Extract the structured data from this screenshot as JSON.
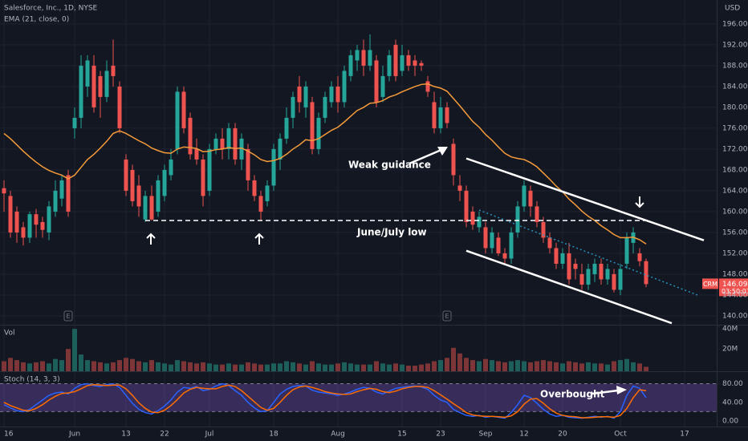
{
  "chart_data": [
    {
      "type": "candlestick",
      "title": "Salesforce, Inc., 1D, NYSE",
      "currency": "USD",
      "ticker": "CRM",
      "last_price": 146.09,
      "countdown": "03:50:07",
      "up_color": "#26a69a",
      "down_color": "#ef5350",
      "xlim": [
        -0.625,
        111
      ],
      "ylim": [
        138.3,
        200.6
      ],
      "yticks": [
        {
          "value": 140,
          "label": "140.00"
        },
        {
          "value": 144,
          "label": "144.00"
        },
        {
          "value": 148,
          "label": "148.00"
        },
        {
          "value": 152,
          "label": "152.00"
        },
        {
          "value": 156,
          "label": "156.00"
        },
        {
          "value": 160,
          "label": "160.00"
        },
        {
          "value": 164,
          "label": "164.00"
        },
        {
          "value": 168,
          "label": "168.00"
        },
        {
          "value": 172,
          "label": "172.00"
        },
        {
          "value": 176,
          "label": "176.00"
        },
        {
          "value": 180,
          "label": "180.00"
        },
        {
          "value": 184,
          "label": "184.00"
        },
        {
          "value": 188,
          "label": "188.00"
        },
        {
          "value": 192,
          "label": "192.00"
        },
        {
          "value": 196,
          "label": "196.00"
        }
      ],
      "grid": true,
      "x": [
        0,
        1,
        2,
        3,
        4,
        5,
        6,
        7,
        8,
        9,
        10,
        11,
        12,
        13,
        14,
        15,
        16,
        17,
        18,
        19,
        20,
        21,
        22,
        23,
        24,
        25,
        26,
        27,
        28,
        29,
        30,
        31,
        32,
        33,
        34,
        35,
        36,
        37,
        38,
        39,
        40,
        41,
        42,
        43,
        44,
        45,
        46,
        47,
        48,
        49,
        50,
        51,
        52,
        53,
        54,
        55,
        56,
        57,
        58,
        59,
        60,
        61,
        62,
        63,
        64,
        65,
        66,
        67,
        68,
        69,
        70,
        71,
        72,
        73,
        74,
        75,
        76,
        77,
        78,
        79,
        80,
        81,
        82,
        83,
        84,
        85,
        86,
        87,
        88,
        89,
        90,
        91,
        92,
        93,
        94,
        95,
        96,
        97,
        98,
        99,
        100
      ],
      "open": [
        164.5,
        163,
        160,
        157,
        155,
        159.5,
        158,
        156,
        160,
        162.5,
        167,
        176,
        178,
        184,
        188,
        186,
        182,
        188,
        184,
        170,
        168,
        165,
        158.5,
        163,
        160,
        163,
        167,
        172,
        183,
        178,
        172,
        170,
        164,
        172,
        174,
        172,
        176,
        170,
        172,
        166,
        163,
        162,
        165,
        170,
        174,
        178,
        184,
        180,
        181,
        172,
        178,
        181,
        184,
        181,
        186,
        189,
        191,
        188,
        189,
        182,
        186,
        192,
        187,
        190,
        189,
        188.5,
        185,
        181,
        176,
        180,
        173,
        165,
        164,
        160,
        157,
        157,
        153,
        155,
        152,
        151,
        156,
        161,
        164,
        161,
        158,
        155,
        153,
        150,
        152,
        150,
        148,
        146,
        148,
        150,
        147,
        148,
        145,
        150,
        154,
        152,
        150.5
      ],
      "high": [
        166,
        164,
        161,
        158,
        160,
        160.5,
        159,
        162,
        166,
        167,
        168,
        180,
        190,
        190,
        190,
        187,
        189,
        193,
        185,
        171,
        169,
        167,
        164,
        165,
        167,
        169,
        172,
        184,
        184,
        179,
        174,
        171,
        173,
        175,
        176,
        177,
        177,
        175,
        173,
        167,
        164,
        166,
        173,
        175,
        180,
        183,
        186,
        185,
        182,
        179,
        183,
        185,
        186,
        188,
        191,
        192,
        193,
        194,
        190,
        188,
        191,
        193,
        192,
        191,
        190,
        189,
        186,
        183,
        182,
        181,
        174,
        167,
        165,
        161,
        160,
        158,
        157,
        156,
        153,
        157,
        162,
        166,
        165,
        162,
        159,
        156,
        154,
        153,
        154,
        151,
        150,
        150,
        151,
        151,
        150,
        149,
        150,
        156,
        157,
        153,
        151
      ],
      "low": [
        160,
        155,
        154,
        153.5,
        154,
        155,
        155,
        154.5,
        159,
        161,
        159,
        174,
        176,
        182,
        179,
        178,
        181,
        184,
        175,
        163,
        161,
        159,
        158,
        158.3,
        159,
        162,
        166,
        171,
        175,
        170,
        169,
        161,
        163,
        171,
        170,
        170,
        169,
        168,
        164,
        162,
        158.2,
        161,
        164,
        168,
        173,
        176,
        179,
        178,
        171,
        171,
        177,
        180,
        179,
        180,
        185,
        187,
        186,
        187,
        180,
        181,
        185,
        185,
        186,
        187,
        186,
        187,
        182,
        175,
        175,
        176,
        165,
        162,
        157,
        156.5,
        156,
        152,
        152,
        151.5,
        150,
        150,
        155,
        160,
        159,
        157,
        154,
        152,
        149,
        149,
        146,
        147,
        145,
        145,
        146.5,
        146,
        146,
        144.5,
        144,
        149,
        152,
        149.5,
        145.5
      ],
      "close": [
        163.5,
        156,
        156,
        155,
        159.5,
        157.5,
        156.5,
        161,
        164,
        166,
        160,
        178,
        188,
        189,
        180,
        182,
        187,
        186,
        176,
        164,
        162,
        161,
        163,
        158.5,
        166,
        168,
        170,
        183,
        176,
        171,
        170,
        163,
        172,
        174,
        172,
        176,
        170,
        174,
        166,
        163,
        160,
        165,
        172,
        174,
        178,
        182,
        181,
        184,
        172,
        178,
        182,
        184,
        181,
        187,
        190,
        191,
        188,
        191,
        181,
        186,
        190,
        186,
        190,
        188,
        188,
        188,
        183,
        176,
        180,
        177,
        167,
        164,
        158,
        157.5,
        159,
        153,
        156,
        152,
        151,
        156,
        161,
        165,
        161,
        158,
        155,
        153,
        150,
        152,
        147,
        149,
        146,
        149,
        150,
        147,
        149,
        145,
        149,
        155,
        156,
        150.5,
        146.09
      ],
      "overlay": {
        "name": "EMA (21, close, 0)",
        "color": "#f59b3a",
        "values": [
          175,
          174,
          172.8,
          171.6,
          170.5,
          169.5,
          168.6,
          167.9,
          167.4,
          167,
          166.3,
          167,
          168.5,
          170,
          171,
          172.2,
          173.5,
          175,
          175.5,
          175,
          174.3,
          173.6,
          173,
          172.2,
          171.7,
          171.3,
          171.2,
          172,
          172.4,
          172.3,
          172.1,
          171.5,
          171.6,
          171.9,
          172,
          172.3,
          172.1,
          172.2,
          171.6,
          170.9,
          170,
          169.6,
          169.8,
          170.2,
          171,
          172,
          172.8,
          173.8,
          173.6,
          174,
          174.8,
          175.6,
          176.2,
          177.2,
          178.3,
          179.4,
          180,
          180.8,
          180.9,
          181.3,
          182,
          182.4,
          183,
          183.5,
          184,
          184.4,
          184.5,
          184,
          183.7,
          183.1,
          181.7,
          180.3,
          178.8,
          177.3,
          176.2,
          174.8,
          173.7,
          172.4,
          171.2,
          170.5,
          170.2,
          170,
          169.4,
          168.6,
          167.4,
          166.2,
          164.9,
          163.8,
          162.4,
          161.3,
          160.1,
          159.1,
          158.3,
          157.3,
          156.5,
          155.6,
          155,
          155,
          155.1,
          154.6,
          153.8
        ]
      },
      "earnings": [
        {
          "x": 10,
          "label": "E"
        },
        {
          "x": 69,
          "label": "E"
        }
      ],
      "lines": [
        {
          "x": [
            72,
            109
          ],
          "y": [
            170.2,
            154.5
          ],
          "style": "solid",
          "color": "#ffffff"
        },
        {
          "x": [
            72,
            104
          ],
          "y": [
            152.5,
            138.6
          ],
          "style": "solid",
          "color": "#ffffff"
        },
        {
          "x": [
            74,
            108
          ],
          "y": [
            160.3,
            144
          ],
          "style": "dotted",
          "color": "#2a8fb8"
        },
        {
          "x": [
            22,
            100
          ],
          "y": [
            158.3,
            158.3
          ],
          "style": "dashed",
          "color": "#ffffff",
          "label": "June/July low"
        }
      ],
      "annotations": [
        "Weak guidance"
      ]
    },
    {
      "type": "bar",
      "title": "Vol",
      "up_color": "#1d5f5a",
      "down_color": "#7d3537",
      "ylim": [
        0,
        41
      ],
      "yticks": [
        {
          "value": 40,
          "label": "40M"
        },
        {
          "value": 20,
          "label": "20M"
        }
      ],
      "values": [
        9,
        12,
        10,
        8,
        7,
        8,
        9,
        7,
        11,
        10,
        20,
        38,
        15,
        10,
        9,
        8,
        7,
        8,
        10,
        12,
        11,
        9,
        8,
        10,
        8,
        7,
        6,
        10,
        9,
        8,
        7,
        8,
        7,
        6,
        6,
        7,
        6,
        6,
        8,
        7,
        6,
        6,
        7,
        7,
        9,
        8,
        7,
        6,
        9,
        7,
        6,
        6,
        7,
        8,
        7,
        6,
        6,
        6,
        9,
        7,
        6,
        7,
        6,
        5,
        5,
        6,
        7,
        9,
        10,
        12,
        21,
        16,
        12,
        10,
        9,
        11,
        10,
        9,
        8,
        9,
        10,
        9,
        8,
        9,
        10,
        9,
        8,
        7,
        9,
        8,
        7,
        8,
        7,
        7,
        6,
        9,
        10,
        11,
        8,
        7,
        4
      ]
    },
    {
      "type": "line",
      "title": "Stoch (14, 3, 3)",
      "xlim": [
        -0.625,
        111
      ],
      "xticks": [
        {
          "value": 0,
          "label": "16"
        },
        {
          "value": 11,
          "label": "Jun"
        },
        {
          "value": 19,
          "label": "13"
        },
        {
          "value": 25,
          "label": "22"
        },
        {
          "value": 32,
          "label": "Jul"
        },
        {
          "value": 42,
          "label": "18"
        },
        {
          "value": 52,
          "label": "Aug"
        },
        {
          "value": 62,
          "label": "15"
        },
        {
          "value": 68,
          "label": "23"
        },
        {
          "value": 75,
          "label": "Sep"
        },
        {
          "value": 81,
          "label": "12"
        },
        {
          "value": 87,
          "label": "20"
        },
        {
          "value": 96,
          "label": "Oct"
        },
        {
          "value": 106,
          "label": "17"
        }
      ],
      "ylim": [
        -12,
        105
      ],
      "yticks": [
        {
          "value": 80,
          "label": "80.00"
        },
        {
          "value": 40,
          "label": "40.00"
        },
        {
          "value": 0,
          "label": "0.00"
        }
      ],
      "band": [
        20,
        80
      ],
      "band_color": "#7e57c2",
      "annotation": "Overbought",
      "series": [
        {
          "color": "#2962ff",
          "values": [
            35,
            28,
            22,
            20,
            25,
            35,
            45,
            55,
            60,
            62,
            58,
            70,
            78,
            80,
            76,
            74,
            78,
            80,
            72,
            55,
            38,
            25,
            18,
            15,
            22,
            32,
            45,
            62,
            72,
            70,
            74,
            65,
            68,
            75,
            80,
            76,
            65,
            55,
            40,
            28,
            20,
            22,
            40,
            58,
            68,
            74,
            76,
            75,
            66,
            62,
            60,
            58,
            55,
            58,
            62,
            68,
            72,
            70,
            62,
            58,
            64,
            70,
            72,
            74,
            75,
            73,
            68,
            55,
            45,
            40,
            25,
            18,
            12,
            10,
            12,
            8,
            10,
            8,
            6,
            18,
            35,
            55,
            50,
            38,
            25,
            15,
            10,
            12,
            8,
            7,
            6,
            8,
            10,
            8,
            10,
            6,
            20,
            55,
            75,
            70,
            50
          ]
        },
        {
          "color": "#ff6d00",
          "values": [
            40,
            33,
            28,
            23,
            22,
            27,
            35,
            45,
            53,
            59,
            60,
            63,
            69,
            76,
            78,
            77,
            76,
            77,
            77,
            69,
            55,
            39,
            27,
            19,
            18,
            23,
            33,
            46,
            60,
            68,
            72,
            70,
            69,
            69,
            74,
            77,
            74,
            65,
            53,
            41,
            29,
            23,
            27,
            40,
            55,
            67,
            73,
            75,
            72,
            68,
            63,
            60,
            58,
            57,
            58,
            63,
            67,
            70,
            68,
            63,
            61,
            64,
            69,
            72,
            74,
            74,
            72,
            65,
            56,
            47,
            37,
            28,
            18,
            13,
            11,
            10,
            10,
            9,
            8,
            11,
            20,
            36,
            47,
            48,
            38,
            26,
            17,
            12,
            10,
            9,
            7,
            7,
            8,
            9,
            9,
            8,
            12,
            27,
            50,
            67,
            65
          ]
        }
      ]
    }
  ]
}
